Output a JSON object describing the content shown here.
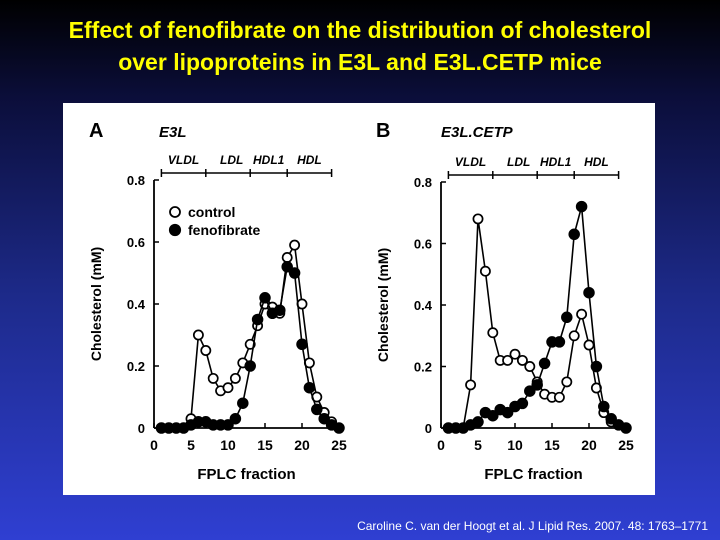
{
  "title": {
    "line1": "Effect of fenofibrate on the distribution of cholesterol",
    "line2": "over lipoproteins in E3L and E3L.CETP mice"
  },
  "citation": "Caroline C. van der Hoogt et al. J Lipid Res. 2007. 48: 1763–1771",
  "colors": {
    "title": "#ffff00",
    "background": "#1d2a8a",
    "panel": "#ffffff",
    "control_marker": "#ffffff",
    "fenofibrate_marker": "#000000"
  },
  "chart_data": [
    {
      "type": "line",
      "panel_letter": "A",
      "title": "E3L",
      "xlabel": "FPLC fraction",
      "ylabel": "Cholesterol (mM)",
      "xlim": [
        0,
        25
      ],
      "ylim": [
        0,
        0.8
      ],
      "xticks": [
        0,
        5,
        10,
        15,
        20,
        25
      ],
      "yticks": [
        0,
        0.2,
        0.4,
        0.6,
        0.8
      ],
      "ytick_labels": [
        "0",
        "0.2",
        "0.4",
        "0.6",
        "0.8"
      ],
      "grid": false,
      "legend_position": "top-left",
      "regions": [
        {
          "label": "VLDL",
          "from": 1,
          "to": 7
        },
        {
          "label": "LDL",
          "from": 8,
          "to": 13
        },
        {
          "label": "HDL1",
          "from": 13,
          "to": 18
        },
        {
          "label": "HDL",
          "from": 18,
          "to": 24
        }
      ],
      "series": [
        {
          "name": "control",
          "marker": "open-circle",
          "points": [
            [
              1,
              0
            ],
            [
              2,
              0
            ],
            [
              3,
              0
            ],
            [
              4,
              0
            ],
            [
              5,
              0.03
            ],
            [
              6,
              0.3
            ],
            [
              7,
              0.25
            ],
            [
              8,
              0.16
            ],
            [
              9,
              0.12
            ],
            [
              10,
              0.13
            ],
            [
              11,
              0.16
            ],
            [
              12,
              0.21
            ],
            [
              13,
              0.27
            ],
            [
              14,
              0.33
            ],
            [
              15,
              0.4
            ],
            [
              16,
              0.39
            ],
            [
              17,
              0.37
            ],
            [
              18,
              0.55
            ],
            [
              19,
              0.59
            ],
            [
              20,
              0.4
            ],
            [
              21,
              0.21
            ],
            [
              22,
              0.1
            ],
            [
              23,
              0.05
            ],
            [
              24,
              0.02
            ],
            [
              25,
              0
            ]
          ]
        },
        {
          "name": "fenofibrate",
          "marker": "filled-circle",
          "points": [
            [
              1,
              0
            ],
            [
              2,
              0
            ],
            [
              3,
              0
            ],
            [
              4,
              0
            ],
            [
              5,
              0.01
            ],
            [
              6,
              0.02
            ],
            [
              7,
              0.02
            ],
            [
              8,
              0.01
            ],
            [
              9,
              0.01
            ],
            [
              10,
              0.01
            ],
            [
              11,
              0.03
            ],
            [
              12,
              0.08
            ],
            [
              13,
              0.2
            ],
            [
              14,
              0.35
            ],
            [
              15,
              0.42
            ],
            [
              16,
              0.37
            ],
            [
              17,
              0.38
            ],
            [
              18,
              0.52
            ],
            [
              19,
              0.5
            ],
            [
              20,
              0.27
            ],
            [
              21,
              0.13
            ],
            [
              22,
              0.06
            ],
            [
              23,
              0.03
            ],
            [
              24,
              0.01
            ],
            [
              25,
              0
            ]
          ]
        }
      ]
    },
    {
      "type": "line",
      "panel_letter": "B",
      "title": "E3L.CETP",
      "xlabel": "FPLC fraction",
      "ylabel": "Cholesterol (mM)",
      "xlim": [
        0,
        25
      ],
      "ylim": [
        0,
        0.8
      ],
      "xticks": [
        0,
        5,
        10,
        15,
        20,
        25
      ],
      "yticks": [
        0,
        0.2,
        0.4,
        0.6,
        0.8
      ],
      "ytick_labels": [
        "0",
        "0.2",
        "0.4",
        "0.6",
        "0.8"
      ],
      "grid": false,
      "regions": [
        {
          "label": "VLDL",
          "from": 1,
          "to": 7
        },
        {
          "label": "LDL",
          "from": 8,
          "to": 13
        },
        {
          "label": "HDL1",
          "from": 13,
          "to": 18
        },
        {
          "label": "HDL",
          "from": 18,
          "to": 24
        }
      ],
      "series": [
        {
          "name": "control",
          "marker": "open-circle",
          "points": [
            [
              1,
              0
            ],
            [
              2,
              0
            ],
            [
              3,
              0
            ],
            [
              4,
              0.14
            ],
            [
              5,
              0.68
            ],
            [
              6,
              0.51
            ],
            [
              7,
              0.31
            ],
            [
              8,
              0.22
            ],
            [
              9,
              0.22
            ],
            [
              10,
              0.24
            ],
            [
              11,
              0.22
            ],
            [
              12,
              0.2
            ],
            [
              13,
              0.15
            ],
            [
              14,
              0.11
            ],
            [
              15,
              0.1
            ],
            [
              16,
              0.1
            ],
            [
              17,
              0.15
            ],
            [
              18,
              0.3
            ],
            [
              19,
              0.37
            ],
            [
              20,
              0.27
            ],
            [
              21,
              0.13
            ],
            [
              22,
              0.05
            ],
            [
              23,
              0.02
            ],
            [
              24,
              0.01
            ],
            [
              25,
              0
            ]
          ]
        },
        {
          "name": "fenofibrate",
          "marker": "filled-circle",
          "points": [
            [
              1,
              0
            ],
            [
              2,
              0
            ],
            [
              3,
              0
            ],
            [
              4,
              0.01
            ],
            [
              5,
              0.02
            ],
            [
              6,
              0.05
            ],
            [
              7,
              0.04
            ],
            [
              8,
              0.06
            ],
            [
              9,
              0.05
            ],
            [
              10,
              0.07
            ],
            [
              11,
              0.08
            ],
            [
              12,
              0.12
            ],
            [
              13,
              0.14
            ],
            [
              14,
              0.21
            ],
            [
              15,
              0.28
            ],
            [
              16,
              0.28
            ],
            [
              17,
              0.36
            ],
            [
              18,
              0.63
            ],
            [
              19,
              0.72
            ],
            [
              20,
              0.44
            ],
            [
              21,
              0.2
            ],
            [
              22,
              0.07
            ],
            [
              23,
              0.03
            ],
            [
              24,
              0.01
            ],
            [
              25,
              0
            ]
          ]
        }
      ]
    }
  ]
}
